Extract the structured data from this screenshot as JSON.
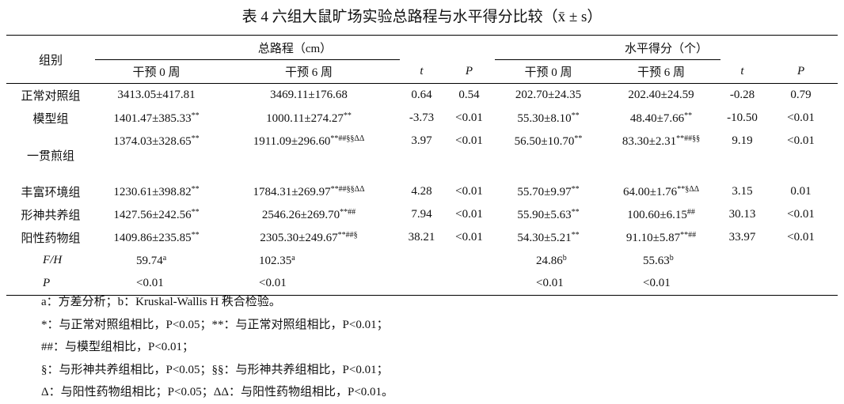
{
  "title": "表 4  六组大鼠旷场实验总路程与水平得分比较（x̄ ± s）",
  "header": {
    "group": "组别",
    "spans": [
      "总路程（cm）",
      "水平得分（个）"
    ],
    "columns": [
      "干预 0 周",
      "干预 6 周",
      "t",
      "P",
      "干预 0 周",
      "干预 6 周",
      "t",
      "P"
    ]
  },
  "table": {
    "rows": [
      {
        "group": "正常对照组",
        "cells": [
          {
            "text": "3413.05±417.81"
          },
          {
            "text": "3469.11±176.68"
          },
          {
            "text": "0.64"
          },
          {
            "text": "0.54"
          },
          {
            "text": "202.70±24.35"
          },
          {
            "text": "202.40±24.59"
          },
          {
            "text": "-0.28"
          },
          {
            "text": "0.79"
          }
        ]
      },
      {
        "group": "模型组",
        "cells": [
          {
            "text": "1401.47±385.33",
            "sup": "**"
          },
          {
            "text": "1000.11±274.27",
            "sup": "**"
          },
          {
            "text": "-3.73"
          },
          {
            "text": "<0.01"
          },
          {
            "text": "55.30±8.10",
            "sup": "**"
          },
          {
            "text": "48.40±7.66",
            "sup": "**"
          },
          {
            "text": "-10.50"
          },
          {
            "text": "<0.01"
          }
        ]
      },
      {
        "group": "一贯煎组",
        "cells": [
          {
            "text": "1374.03±328.65",
            "sup": "**"
          },
          {
            "text": "1911.09±296.60",
            "sup": "**##§§ΔΔ"
          },
          {
            "text": "3.97"
          },
          {
            "text": "<0.01"
          },
          {
            "text": "56.50±10.70",
            "sup": "**"
          },
          {
            "text": "83.30±2.31",
            "sup": "**##§§"
          },
          {
            "text": "9.19"
          },
          {
            "text": "<0.01"
          }
        ]
      },
      {
        "group": "丰富环境组",
        "cells": [
          {
            "text": "1230.61±398.82",
            "sup": "**"
          },
          {
            "text": "1784.31±269.97",
            "sup": "**##§§ΔΔ"
          },
          {
            "text": "4.28"
          },
          {
            "text": "<0.01"
          },
          {
            "text": "55.70±9.97",
            "sup": "**"
          },
          {
            "text": "64.00±1.76",
            "sup": "**§ΔΔ"
          },
          {
            "text": "3.15"
          },
          {
            "text": "0.01"
          }
        ]
      },
      {
        "group": "形神共养组",
        "cells": [
          {
            "text": "1427.56±242.56",
            "sup": "**"
          },
          {
            "text": "2546.26±269.70",
            "sup": "**##"
          },
          {
            "text": "7.94"
          },
          {
            "text": "<0.01"
          },
          {
            "text": "55.90±5.63",
            "sup": "**"
          },
          {
            "text": "100.60±6.15",
            "sup": "##"
          },
          {
            "text": "30.13"
          },
          {
            "text": "<0.01"
          }
        ]
      },
      {
        "group": "阳性药物组",
        "cells": [
          {
            "text": "1409.86±235.85",
            "sup": "**"
          },
          {
            "text": "2305.30±249.67",
            "sup": "**##§"
          },
          {
            "text": "38.21"
          },
          {
            "text": "<0.01"
          },
          {
            "text": "54.30±5.21",
            "sup": "**"
          },
          {
            "text": "91.10±5.87",
            "sup": "**##"
          },
          {
            "text": "33.97"
          },
          {
            "text": "<0.01"
          }
        ]
      },
      {
        "group": "F/H",
        "cells": [
          {
            "text": "59.74",
            "sup": "a"
          },
          {
            "text": "102.35",
            "sup": "a"
          },
          null,
          null,
          {
            "text": "24.86",
            "sup": "b"
          },
          {
            "text": "55.63",
            "sup": "b"
          },
          null,
          null
        ]
      },
      {
        "group": "P",
        "cells": [
          {
            "text": "<0.01"
          },
          {
            "text": "<0.01"
          },
          null,
          null,
          {
            "text": "<0.01"
          },
          {
            "text": "<0.01"
          },
          null,
          null
        ]
      }
    ]
  },
  "notes": [
    "a：方差分析；b：Kruskal-Wallis H 秩合检验。",
    "*：与正常对照组相比，P<0.05；**：与正常对照组相比，P<0.01；",
    "##：与模型组相比，P<0.01；",
    "§：与形神共养组相比，P<0.05；§§：与形神共养组相比，P<0.01；",
    "Δ：与阳性药物组相比；P<0.05；ΔΔ：与阳性药物组相比，P<0.01。"
  ]
}
